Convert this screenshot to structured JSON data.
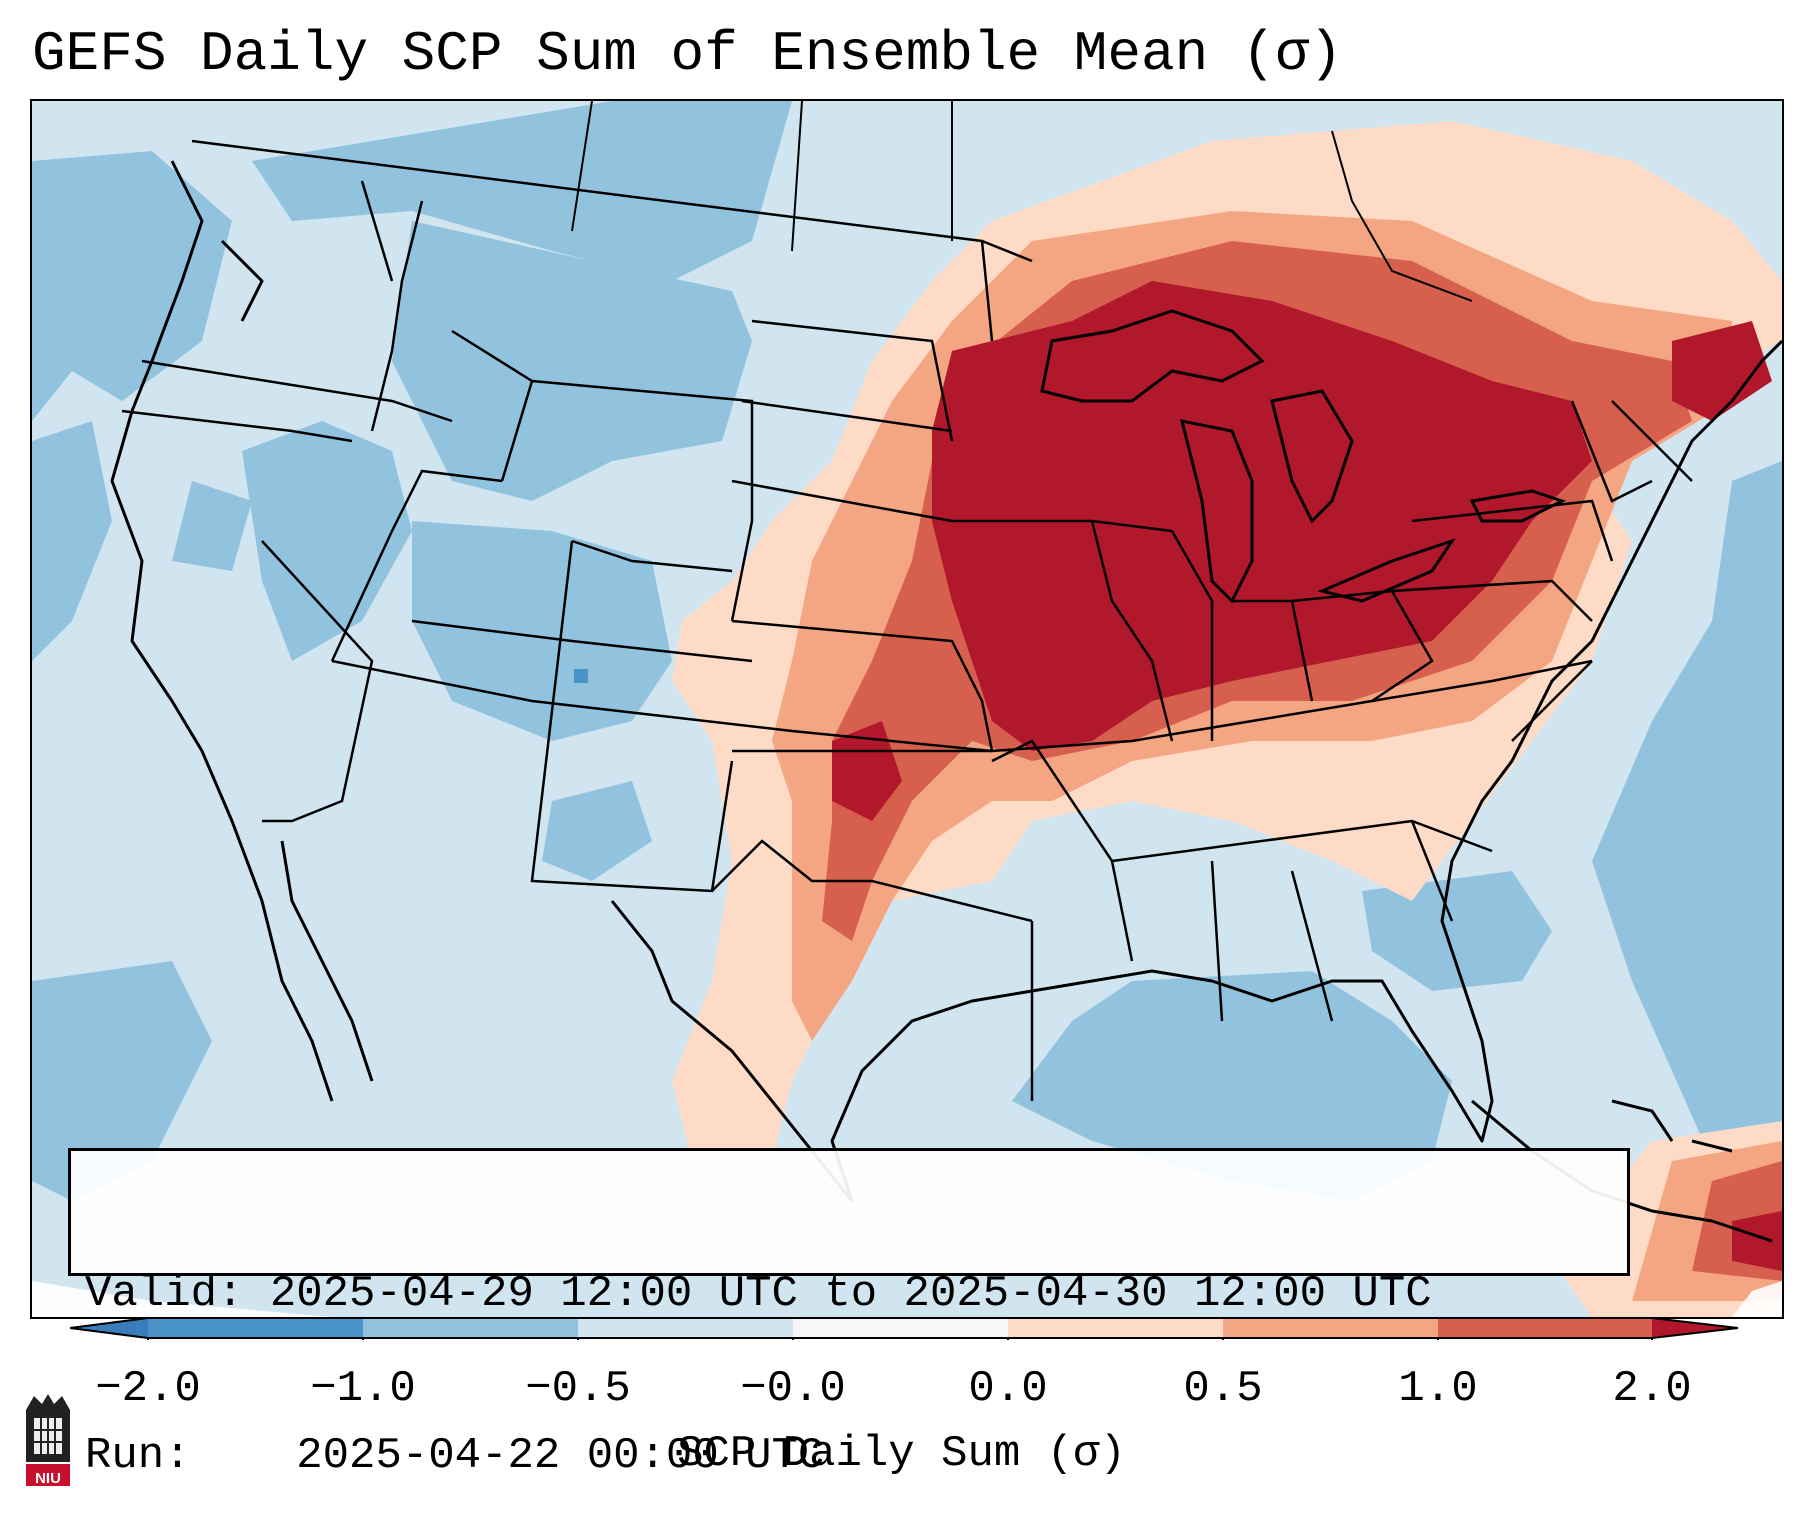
{
  "title": "GEFS Daily SCP Sum of Ensemble Mean (σ)",
  "valid_box": {
    "valid_label": "Valid:",
    "valid_value": "2025-04-29 12:00 UTC to 2025-04-30 12:00 UTC",
    "run_label": "Run:",
    "run_value": "2025-04-22 00:00 UTC"
  },
  "colorbar": {
    "title": "SCP Daily Sum (σ)",
    "ticks": [
      "−2.0",
      "−1.0",
      "−0.5",
      "−0.0",
      "0.0",
      "0.5",
      "1.0",
      "2.0"
    ],
    "bins": [
      {
        "range": "< -2.0",
        "color": "#3a7dbf"
      },
      {
        "range": "-2.0 to -1.0",
        "color": "#4a93c8"
      },
      {
        "range": "-1.0 to -0.5",
        "color": "#92c3de"
      },
      {
        "range": "-0.5 to -0.0",
        "color": "#d1e5f0"
      },
      {
        "range": "-0.0 to 0.0",
        "color": "#f7f7f7"
      },
      {
        "range": "0.0 to 0.5",
        "color": "#fddbc7"
      },
      {
        "range": "0.5 to 1.0",
        "color": "#f4a582"
      },
      {
        "range": "1.0 to 2.0",
        "color": "#d6604d"
      },
      {
        "range": "> 2.0",
        "color": "#b2182b"
      }
    ]
  },
  "logo": {
    "text": "NIU",
    "color": "#c8102e"
  },
  "map": {
    "region": "Contiguous United States",
    "highlight": "Strongly positive SCP anomalies over Upper Midwest, Great Lakes, Ohio Valley and Northeast; positive band across southern Plains into Texas; negative anomalies over the West, Gulf of Mexico and Atlantic"
  }
}
